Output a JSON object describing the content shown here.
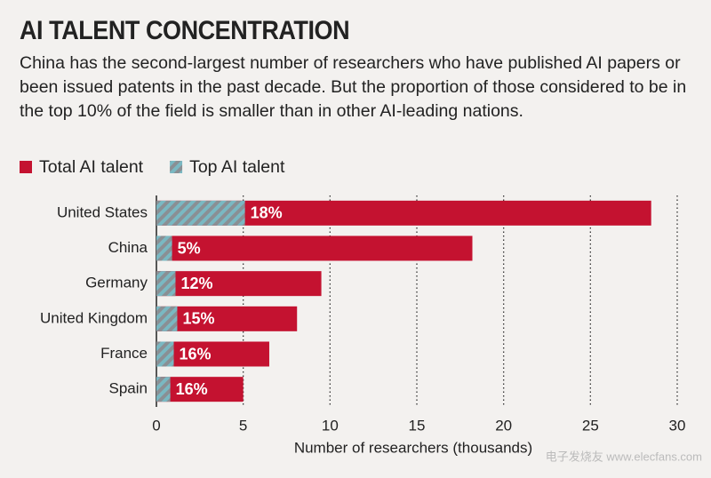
{
  "chart_data": {
    "type": "bar",
    "orientation": "horizontal",
    "title": "AI TALENT CONCENTRATION",
    "subtitle": "China has the second-largest number of researchers who have published AI papers or been issued patents in the past decade. But the proportion of those considered to be in the top 10% of the field is smaller than in other AI-leading nations.",
    "categories": [
      "United States",
      "China",
      "Germany",
      "United Kingdom",
      "France",
      "Spain"
    ],
    "series": [
      {
        "name": "Total AI talent",
        "color": "#c41230",
        "values": [
          28.5,
          18.2,
          9.5,
          8.1,
          6.5,
          5.0
        ]
      },
      {
        "name": "Top AI talent",
        "color": "#7ab8c2",
        "hatch": true,
        "values": [
          5.1,
          0.9,
          1.1,
          1.2,
          1.0,
          0.8
        ]
      }
    ],
    "bar_labels": [
      "18%",
      "5%",
      "12%",
      "15%",
      "16%",
      "16%"
    ],
    "xlabel": "Number of researchers (thousands)",
    "xlim": [
      0,
      30
    ],
    "xticks": [
      0,
      5,
      10,
      15,
      20,
      25,
      30
    ],
    "grid": true,
    "watermark": "电子发烧友 www.elecfans.com"
  }
}
